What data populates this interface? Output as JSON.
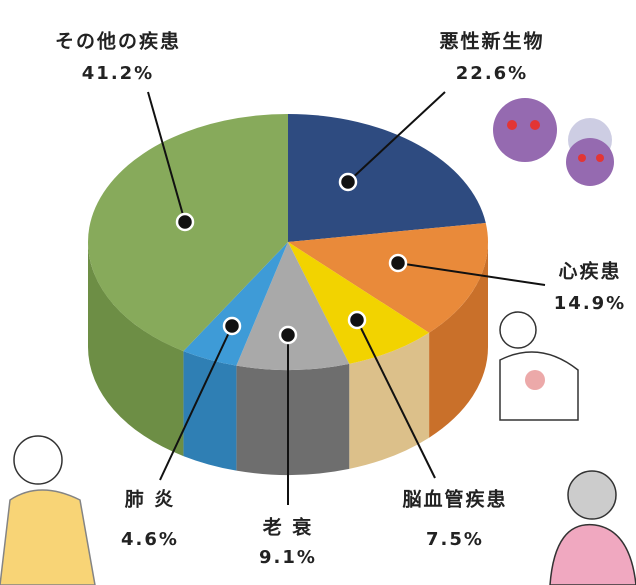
{
  "chart_data": {
    "type": "pie",
    "categories": [
      "悪性新生物",
      "心疾患",
      "脳血管疾患",
      "老 衰",
      "肺 炎",
      "その他の疾患"
    ],
    "values": [
      22.6,
      14.9,
      7.5,
      9.1,
      4.6,
      41.2
    ],
    "value_labels": [
      "22.6%",
      "14.9%",
      "7.5%",
      "9.1%",
      "4.6%",
      "41.2%"
    ],
    "colors": [
      "#2e4b80",
      "#e98a3a",
      "#f2d300",
      "#a9a9a9",
      "#3e9bd7",
      "#87aa5b"
    ],
    "side_colors": [
      "#233a63",
      "#c9702a",
      "#dcc08a",
      "#6e6e6e",
      "#2f7fb4",
      "#6d8e45"
    ]
  }
}
